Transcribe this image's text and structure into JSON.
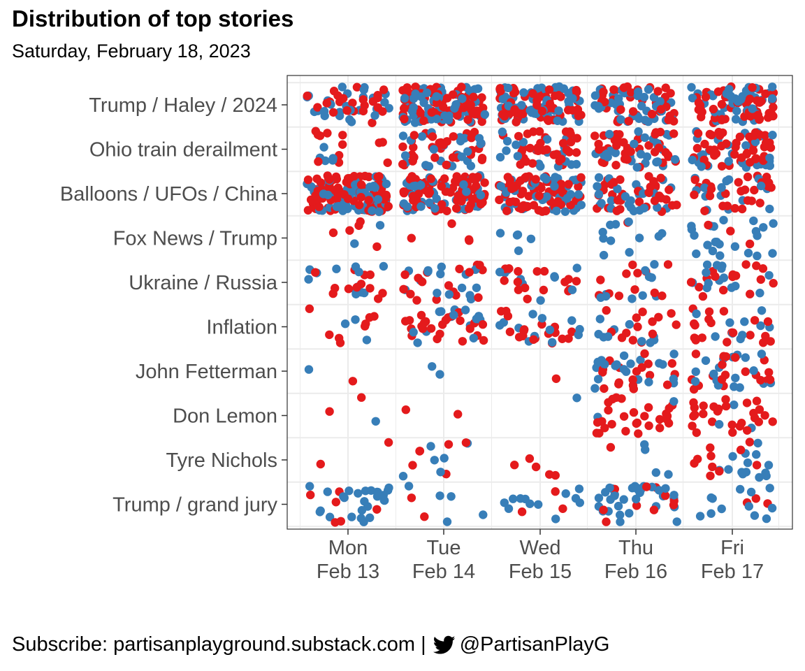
{
  "title": "Distribution of top stories",
  "subtitle": "Saturday, February 18, 2023",
  "caption": {
    "prefix": "Subscribe: partisanplayground.substack.com |",
    "icon": "twitter-bird-icon",
    "handle": "@PartisanPlayG"
  },
  "colors": {
    "red": "#e41a1c",
    "blue": "#377eb8",
    "panel_border": "#333333",
    "grid": "#ebebeb",
    "axis_text": "#4d4d4d"
  },
  "chart_data": {
    "type": "scatter",
    "description_type": "jittered strip plot",
    "x_categories": [
      {
        "day": "Mon",
        "date": "Feb 13"
      },
      {
        "day": "Tue",
        "date": "Feb 14"
      },
      {
        "day": "Wed",
        "date": "Feb 15"
      },
      {
        "day": "Thu",
        "date": "Feb 16"
      },
      {
        "day": "Fri",
        "date": "Feb 17"
      }
    ],
    "y_categories": [
      "Trump / Haley / 2024",
      "Ohio train derailment",
      "Balloons / UFOs / China",
      "Fox News / Trump",
      "Ukraine / Russia",
      "Inflation",
      "John Fetterman",
      "Don Lemon",
      "Tyre Nichols",
      "Trump / grand jury"
    ],
    "grid": true,
    "legend": "none",
    "point_counts": {
      "Trump / Haley / 2024": [
        [
          26,
          24
        ],
        [
          70,
          75
        ],
        [
          62,
          64
        ],
        [
          38,
          40
        ],
        [
          45,
          55
        ]
      ],
      "Ohio train derailment": [
        [
          5,
          12
        ],
        [
          25,
          35
        ],
        [
          20,
          35
        ],
        [
          28,
          40
        ],
        [
          28,
          45
        ]
      ],
      "Balloons / UFOs / China": [
        [
          70,
          90
        ],
        [
          45,
          70
        ],
        [
          45,
          65
        ],
        [
          25,
          35
        ],
        [
          15,
          28
        ]
      ],
      "Fox News / Trump": [
        [
          2,
          5
        ],
        [
          0,
          4
        ],
        [
          5,
          0
        ],
        [
          11,
          1
        ],
        [
          22,
          3
        ]
      ],
      "Ukraine / Russia": [
        [
          12,
          12
        ],
        [
          15,
          17
        ],
        [
          10,
          16
        ],
        [
          10,
          12
        ],
        [
          14,
          16
        ]
      ],
      "Inflation": [
        [
          3,
          8
        ],
        [
          14,
          24
        ],
        [
          12,
          18
        ],
        [
          10,
          14
        ],
        [
          10,
          20
        ]
      ],
      "John Fetterman": [
        [
          1,
          1
        ],
        [
          2,
          0
        ],
        [
          0,
          1
        ],
        [
          20,
          18
        ],
        [
          18,
          20
        ]
      ],
      "Don Lemon": [
        [
          1,
          2
        ],
        [
          0,
          2
        ],
        [
          1,
          0
        ],
        [
          2,
          28
        ],
        [
          3,
          28
        ]
      ],
      "Tyre Nichols": [
        [
          0,
          2
        ],
        [
          6,
          6
        ],
        [
          0,
          5
        ],
        [
          4,
          1
        ],
        [
          14,
          10
        ]
      ],
      "Trump / grand jury": [
        [
          26,
          6
        ],
        [
          5,
          2
        ],
        [
          12,
          3
        ],
        [
          32,
          10
        ],
        [
          12,
          3
        ]
      ]
    },
    "point_counts_order": [
      "blue",
      "red"
    ]
  }
}
